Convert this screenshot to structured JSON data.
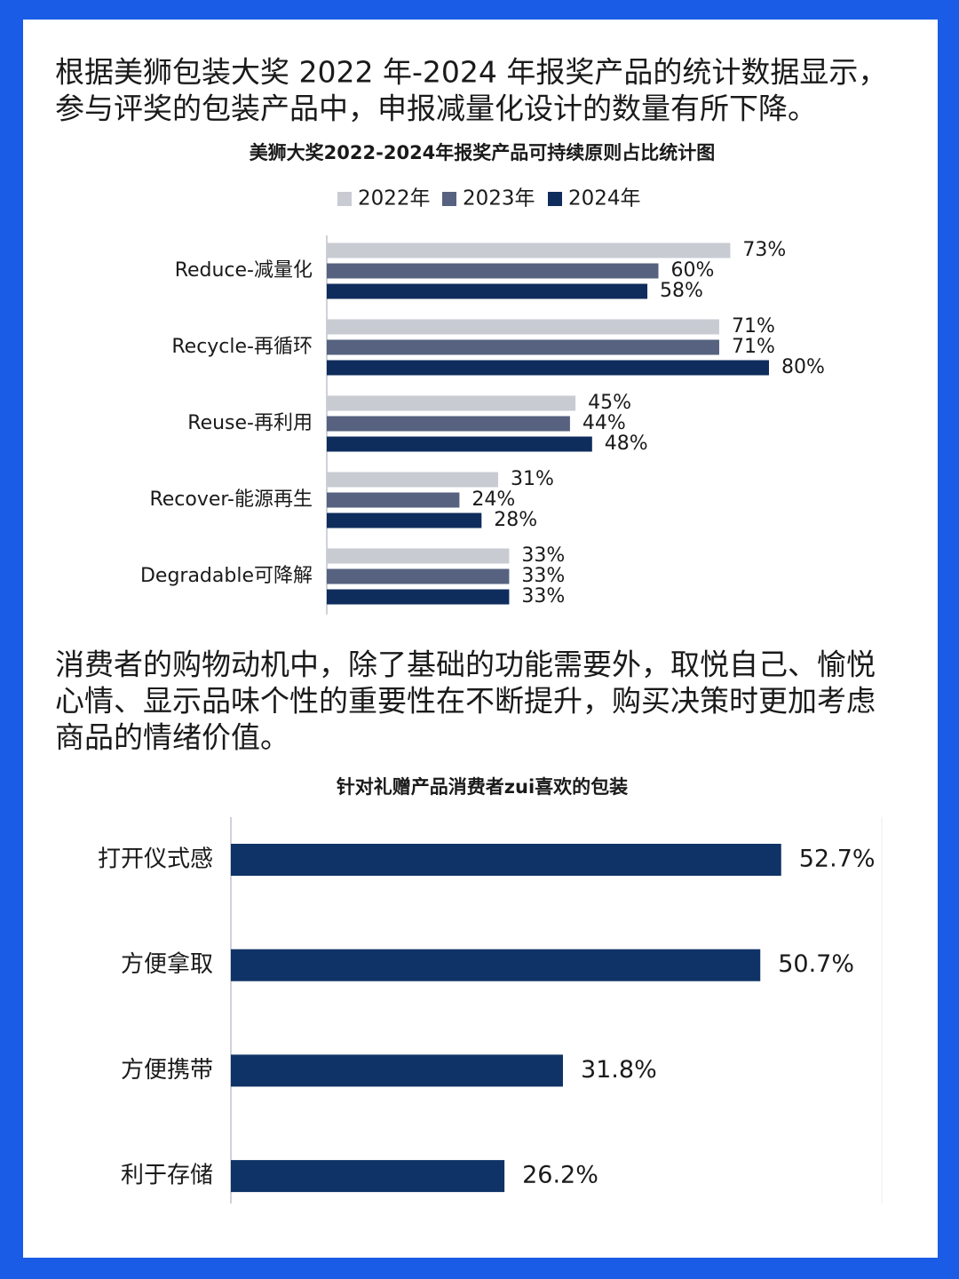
{
  "paragraphs": [
    [
      "根据美狮包装大奖 2022 年-2024 年报奖产品的统计数据显示，",
      "参与评奖的包装产品中，申报减量化设计的数量有所下降。"
    ],
    [
      "消费者的购物动机中，除了基础的功能需要外，取悦自己、愉悦",
      "心情、显示品味个性的重要性在不断提升，购买决策时更加考虑",
      "商品的情绪价值。"
    ]
  ],
  "chart_data": [
    {
      "type": "grouped-hbar",
      "title": "美狮大奖2022-2024年报奖产品可持续原则占比统计图",
      "categories": [
        "Reduce-减量化",
        "Recycle-再循环",
        "Reuse-再利用",
        "Recover-能源再生",
        "Degradable可降解"
      ],
      "legend": "top",
      "series": [
        {
          "name": "2022年",
          "color": "#c9cbd3",
          "values": [
            73,
            71,
            45,
            31,
            33
          ],
          "value_labels": [
            "73%",
            "71%",
            "45%",
            "31%",
            "33%"
          ]
        },
        {
          "name": "2023年",
          "color": "#56627f",
          "values": [
            60,
            71,
            44,
            24,
            33
          ],
          "value_labels": [
            "60%",
            "71%",
            "44%",
            "24%",
            "33%"
          ]
        },
        {
          "name": "2024年",
          "color": "#0f2d5c",
          "values": [
            58,
            80,
            48,
            28,
            33
          ],
          "value_labels": [
            "58%",
            "80%",
            "48%",
            "28%",
            "33%"
          ]
        }
      ]
    },
    {
      "type": "hbar",
      "title": "针对礼赠产品消费者zui喜欢的包装",
      "categories": [
        "打开仪式感",
        "方便拿取",
        "方便携带",
        "利于存储"
      ],
      "color": "#0f3366",
      "values": [
        52.7,
        50.7,
        31.8,
        26.2
      ],
      "value_labels": [
        "52.7%",
        "50.7%",
        "31.8%",
        "26.2%"
      ]
    }
  ]
}
